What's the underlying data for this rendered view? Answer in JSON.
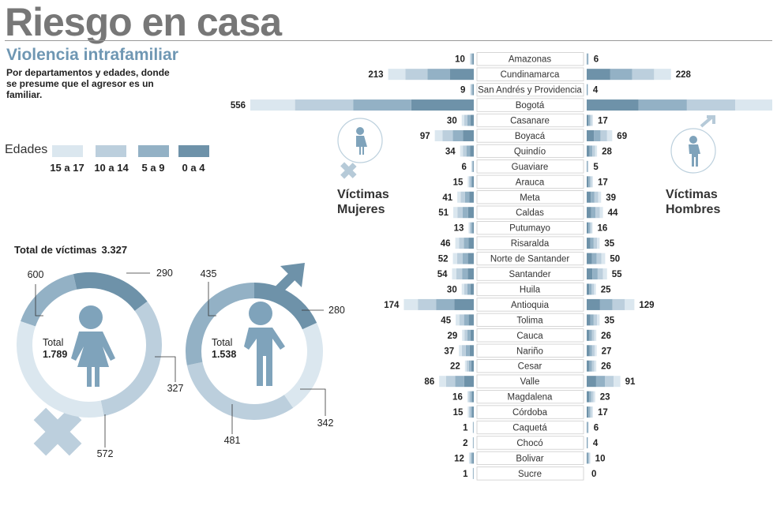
{
  "header": {
    "title": "Riesgo en casa",
    "subtitle": "Violencia intrafamiliar",
    "description": "Por departamentos y edades, donde se presume que el agresor es un familiar."
  },
  "legend": {
    "title": "Edades",
    "items": [
      {
        "label": "15 a 17",
        "color": "#dbe7ef"
      },
      {
        "label": "10 a 14",
        "color": "#bccfdd"
      },
      {
        "label": "5 a 9",
        "color": "#93b1c5"
      },
      {
        "label": "0 a 4",
        "color": "#6e92a9"
      }
    ]
  },
  "totals": {
    "label": "Total de víctimas",
    "value": "3.327",
    "women": {
      "label": "Total",
      "value": "1.789"
    },
    "men": {
      "label": "Total",
      "value": "1.538"
    }
  },
  "labels": {
    "women": "Víctimas Mujeres",
    "men": "Víctimas Hombres"
  },
  "chart_data": [
    {
      "type": "bar",
      "categories": [
        "Amazonas",
        "Cundinamarca",
        "San Andrés y Providencia",
        "Bogotá",
        "Casanare",
        "Boyacá",
        "Quindío",
        "Guaviare",
        "Arauca",
        "Meta",
        "Caldas",
        "Putumayo",
        "Risaralda",
        "Norte de Santander",
        "Santander",
        "Huila",
        "Antioquia",
        "Tolima",
        "Cauca",
        "Nariño",
        "Cesar",
        "Valle",
        "Magdalena",
        "Córdoba",
        "Caquetá",
        "Chocó",
        "Bolivar",
        "Sucre"
      ],
      "series": [
        {
          "name": "Víctimas Mujeres",
          "values": [
            10,
            213,
            9,
            556,
            30,
            97,
            34,
            6,
            15,
            41,
            51,
            13,
            46,
            52,
            54,
            30,
            174,
            45,
            29,
            37,
            22,
            86,
            16,
            15,
            1,
            2,
            12,
            1
          ]
        },
        {
          "name": "Víctimas Hombres",
          "values": [
            6,
            228,
            4,
            502,
            17,
            69,
            28,
            5,
            17,
            39,
            44,
            16,
            35,
            50,
            55,
            25,
            129,
            35,
            26,
            27,
            26,
            91,
            23,
            17,
            6,
            4,
            10,
            0
          ]
        }
      ],
      "xlabel": "",
      "ylabel": ""
    },
    {
      "type": "pie",
      "labels": [
        "15 a 17",
        "10 a 14",
        "5 a 9",
        "0 a 4"
      ],
      "values": [
        600,
        572,
        290,
        327
      ],
      "total": "1.789"
    },
    {
      "type": "pie",
      "labels": [
        "15 a 17",
        "10 a 14",
        "5 a 9",
        "0 a 4"
      ],
      "values": [
        342,
        481,
        435,
        280
      ],
      "total": "1.538"
    }
  ]
}
